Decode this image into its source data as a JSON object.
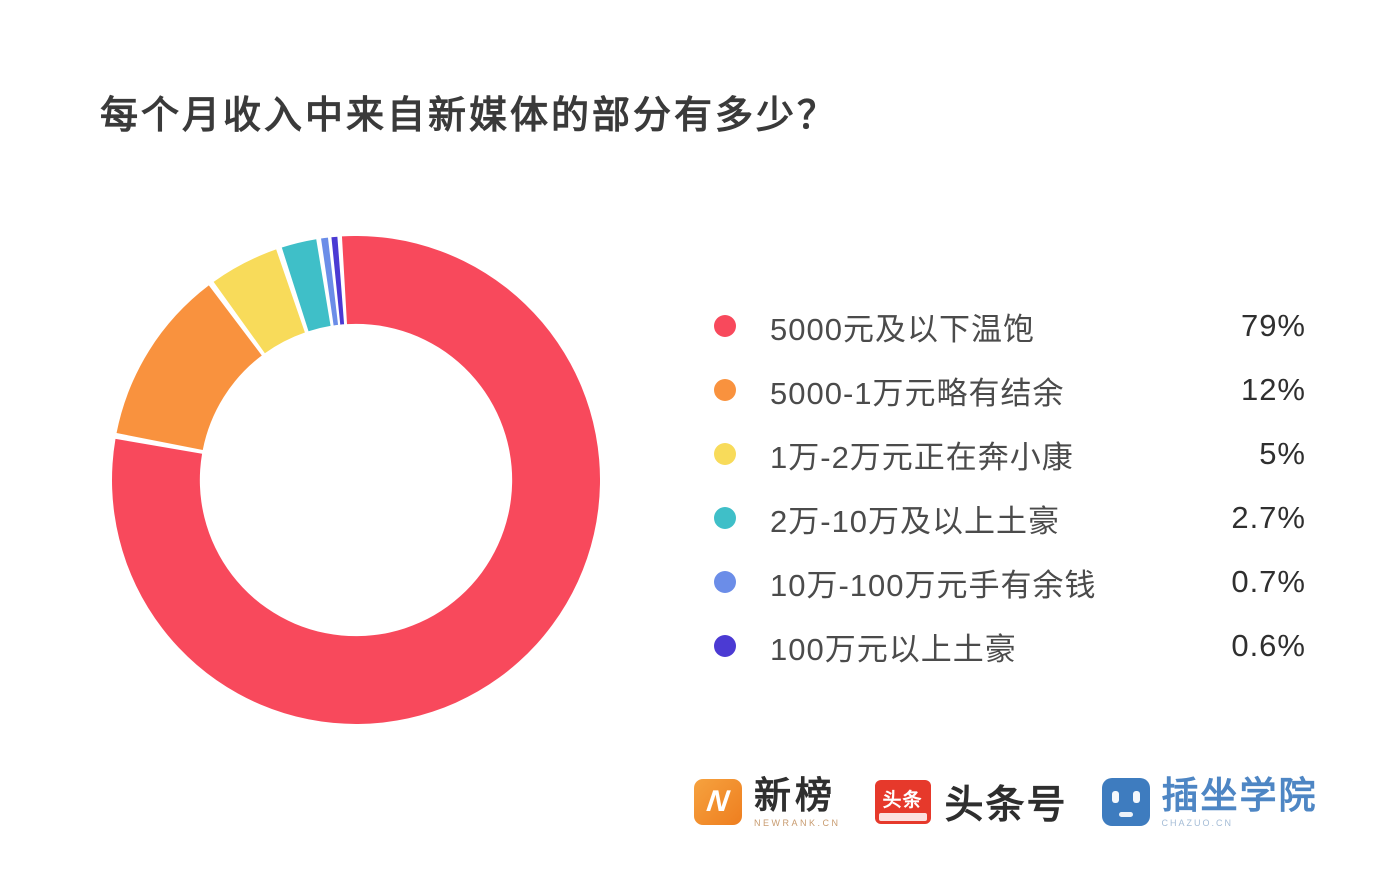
{
  "chart_data": {
    "type": "pie",
    "subtype": "donut",
    "title": "每个月收入中来自新媒体的部分有多少？",
    "legend_position": "right",
    "hole_ratio": 0.64,
    "start_angle_deg": -4,
    "items": [
      {
        "label": "5000元及以下温饱",
        "pct": "79%",
        "value": 79,
        "color": "#F8495C"
      },
      {
        "label": "5000-1万元略有结余",
        "pct": "12%",
        "value": 12,
        "color": "#F9923E"
      },
      {
        "label": "1万-2万元正在奔小康",
        "pct": "5%",
        "value": 5,
        "color": "#F8DB5A"
      },
      {
        "label": "2万-10万及以上土豪",
        "pct": "2.7%",
        "value": 2.7,
        "color": "#3FBFC8"
      },
      {
        "label": "10万-100万元手有余钱",
        "pct": "0.7%",
        "value": 0.7,
        "color": "#6B8DE8"
      },
      {
        "label": "100万元以上土豪",
        "pct": "0.6%",
        "value": 0.6,
        "color": "#4B3AD3"
      }
    ]
  },
  "footer": {
    "newrank": {
      "name": "新榜",
      "caption": "NEWRANK.CN",
      "icon_letter": "N",
      "brand_color": "#EE7E1F"
    },
    "toutiao": {
      "badge": "头条",
      "name": "头条号",
      "brand_color": "#E6392B"
    },
    "chazuo": {
      "name": "插坐学院",
      "caption": "CHAZUO.CN",
      "brand_color": "#3E7CBF"
    }
  }
}
